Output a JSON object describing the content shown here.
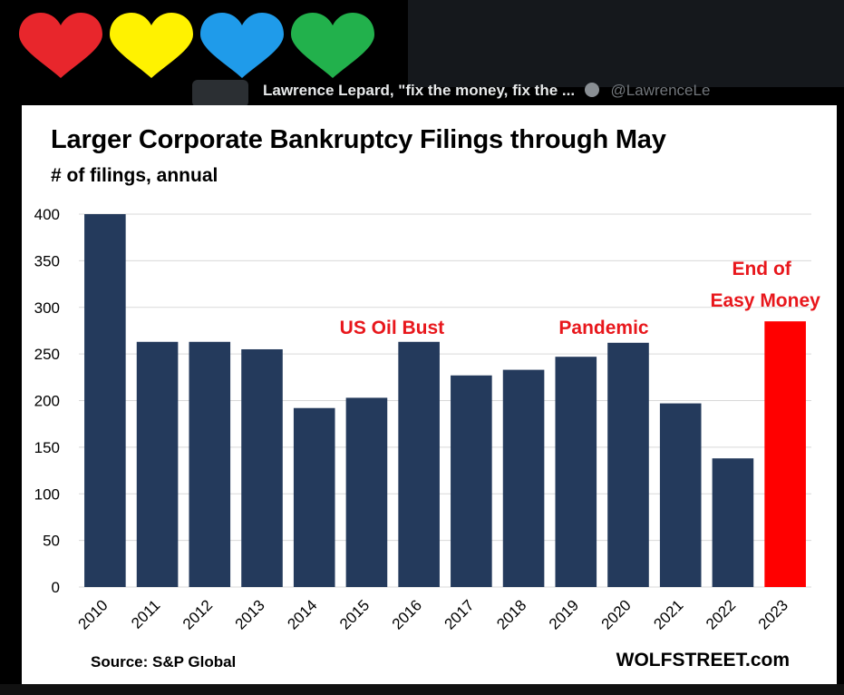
{
  "icons": [
    {
      "name": "red-heart-icon",
      "color": "#e8262c"
    },
    {
      "name": "yellow-heart-icon",
      "color": "#fff200"
    },
    {
      "name": "blue-heart-icon",
      "color": "#1f9bea"
    },
    {
      "name": "green-heart-icon",
      "color": "#22b14c"
    }
  ],
  "tweet": {
    "author": "Lawrence Lepard, \"fix the money, fix the ...",
    "handle": "@LawrenceLe"
  },
  "chart_data": {
    "type": "bar",
    "title": "Larger Corporate Bankruptcy Filings through May",
    "subtitle": "# of filings, annual",
    "source": "Source: S&P Global",
    "brand": "WOLFSTREET.com",
    "categories": [
      "2010",
      "2011",
      "2012",
      "2013",
      "2014",
      "2015",
      "2016",
      "2017",
      "2018",
      "2019",
      "2020",
      "2021",
      "2022",
      "2023"
    ],
    "values": [
      400,
      263,
      263,
      255,
      192,
      203,
      263,
      227,
      233,
      247,
      262,
      197,
      138,
      285
    ],
    "ylim": [
      0,
      400
    ],
    "yticks": [
      0,
      50,
      100,
      150,
      200,
      250,
      300,
      350,
      400
    ],
    "grid": true,
    "bar_color": "#243a5c",
    "highlight_color": "#ff0000",
    "highlight_index": 13,
    "annotations": [
      {
        "text": "US Oil Bust",
        "category": "2015"
      },
      {
        "text": "Pandemic",
        "category": "2020"
      },
      {
        "text": "End of",
        "category": "2023"
      },
      {
        "text": "Easy Money",
        "category": "2023"
      }
    ],
    "annotation_color": "#e8171c"
  }
}
